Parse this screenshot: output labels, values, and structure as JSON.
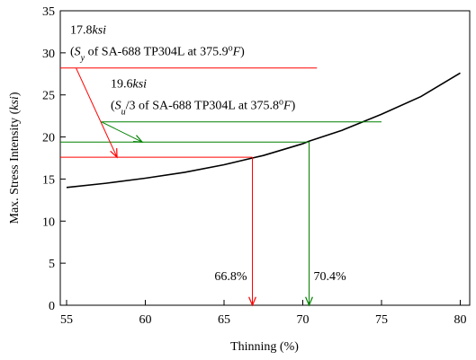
{
  "chart_data": {
    "type": "line",
    "xlabel": "Thinning (%)",
    "ylabel": [
      {
        "text": "Max. Stress Intensity ("
      },
      {
        "text": "ksi",
        "style": "italic"
      },
      {
        "text": ")"
      }
    ],
    "x": [
      55,
      57.5,
      60,
      62.5,
      65,
      66.8,
      67.5,
      70,
      70.4,
      72.5,
      75,
      77.5,
      80
    ],
    "values": [
      14.0,
      14.5,
      15.1,
      15.8,
      16.7,
      17.5,
      17.8,
      19.2,
      19.5,
      20.8,
      22.7,
      24.8,
      27.6
    ],
    "color": "#000000",
    "xlim": [
      54.6,
      80.6
    ],
    "ylim": [
      0,
      35
    ],
    "xticks": [
      55,
      60,
      65,
      70,
      75,
      80
    ],
    "yticks": [
      0,
      5,
      10,
      15,
      20,
      25,
      30,
      35
    ],
    "guides": [
      {
        "x": 66.8,
        "y": 17.6,
        "label": "66.8%",
        "color": "#ff0000"
      },
      {
        "x": 70.4,
        "y": 19.4,
        "label": "70.4%",
        "color": "#008000"
      }
    ],
    "annotations": [
      {
        "color": "#ff0000",
        "level": 28.2,
        "x_range": [
          54.6,
          70.9
        ],
        "arrow": [
          55.6,
          58.2
        ],
        "lines": [
          [
            {
              "text": "17.8"
            },
            {
              "text": "ksi",
              "style": "italic"
            }
          ],
          [
            {
              "text": "("
            },
            {
              "text": "S",
              "style": "italic"
            },
            {
              "text": "y",
              "style": "italic sub"
            },
            {
              "text": " of SA-688 TP304L at 375.9"
            },
            {
              "text": "o",
              "style": "sup"
            },
            {
              "text": "F",
              "style": "italic"
            },
            {
              "text": ")"
            }
          ]
        ]
      },
      {
        "color": "#008000",
        "level": 21.8,
        "x_range": [
          57.2,
          75.0
        ],
        "arrow": [
          57.2,
          59.8
        ],
        "lines": [
          [
            {
              "text": "19.6"
            },
            {
              "text": "ksi",
              "style": "italic"
            }
          ],
          [
            {
              "text": "("
            },
            {
              "text": "S",
              "style": "italic"
            },
            {
              "text": "u",
              "style": "italic sub"
            },
            {
              "text": "/3 of SA-688 TP304L at 375.8"
            },
            {
              "text": "o",
              "style": "sup"
            },
            {
              "text": "F",
              "style": "italic"
            },
            {
              "text": ")"
            }
          ]
        ]
      }
    ]
  }
}
